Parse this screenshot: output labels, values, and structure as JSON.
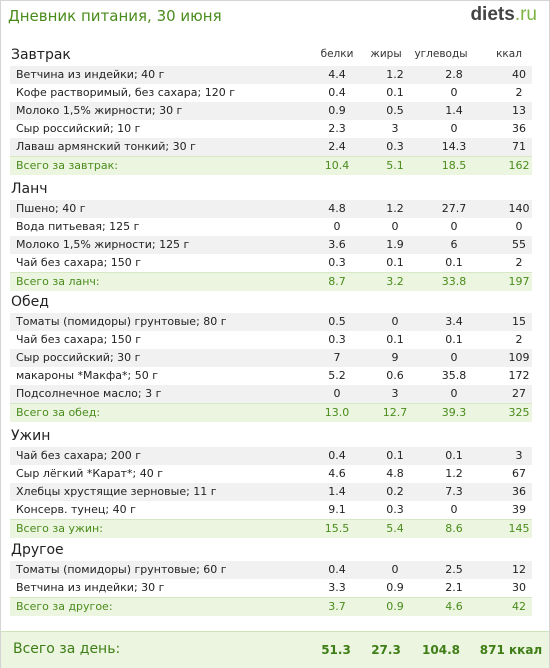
{
  "header": {
    "title": "Дневник питания, 30 июня",
    "logo_main": "diets",
    "logo_tld": ".ru"
  },
  "columns": {
    "protein": "белки",
    "fat": "жиры",
    "carbs": "углеводы",
    "kcal": "ккал"
  },
  "meals": [
    {
      "title": "Завтрак",
      "items": [
        {
          "name": "Ветчина из индейки; 40 г",
          "p": "4.4",
          "f": "1.2",
          "c": "2.8",
          "k": "40"
        },
        {
          "name": "Кофе растворимый, без сахара; 120 г",
          "p": "0.4",
          "f": "0.1",
          "c": "0",
          "k": "2"
        },
        {
          "name": "Молоко 1,5% жирности; 30 г",
          "p": "0.9",
          "f": "0.5",
          "c": "1.4",
          "k": "13"
        },
        {
          "name": "Сыр российский; 10 г",
          "p": "2.3",
          "f": "3",
          "c": "0",
          "k": "36"
        },
        {
          "name": "Лаваш армянский тонкий; 30 г",
          "p": "2.4",
          "f": "0.3",
          "c": "14.3",
          "k": "71"
        }
      ],
      "total": {
        "label": "Всего за завтрак:",
        "p": "10.4",
        "f": "5.1",
        "c": "18.5",
        "k": "162"
      }
    },
    {
      "title": "Ланч",
      "items": [
        {
          "name": "Пшено; 40 г",
          "p": "4.8",
          "f": "1.2",
          "c": "27.7",
          "k": "140"
        },
        {
          "name": "Вода питьевая; 125 г",
          "p": "0",
          "f": "0",
          "c": "0",
          "k": "0"
        },
        {
          "name": "Молоко 1,5% жирности; 125 г",
          "p": "3.6",
          "f": "1.9",
          "c": "6",
          "k": "55"
        },
        {
          "name": "Чай без сахара; 150 г",
          "p": "0.3",
          "f": "0.1",
          "c": "0.1",
          "k": "2"
        }
      ],
      "total": {
        "label": "Всего за ланч:",
        "p": "8.7",
        "f": "3.2",
        "c": "33.8",
        "k": "197"
      }
    },
    {
      "title": "Обед",
      "items": [
        {
          "name": "Томаты (помидоры) грунтовые; 80 г",
          "p": "0.5",
          "f": "0",
          "c": "3.4",
          "k": "15"
        },
        {
          "name": "Чай без сахара; 150 г",
          "p": "0.3",
          "f": "0.1",
          "c": "0.1",
          "k": "2"
        },
        {
          "name": "Сыр российский; 30 г",
          "p": "7",
          "f": "9",
          "c": "0",
          "k": "109"
        },
        {
          "name": "макароны *Макфа*; 50 г",
          "p": "5.2",
          "f": "0.6",
          "c": "35.8",
          "k": "172"
        },
        {
          "name": "Подсолнечное масло; 3 г",
          "p": "0",
          "f": "3",
          "c": "0",
          "k": "27"
        }
      ],
      "total": {
        "label": "Всего за обед:",
        "p": "13.0",
        "f": "12.7",
        "c": "39.3",
        "k": "325"
      }
    },
    {
      "title": "Ужин",
      "items": [
        {
          "name": "Чай без сахара; 200 г",
          "p": "0.4",
          "f": "0.1",
          "c": "0.1",
          "k": "3"
        },
        {
          "name": "Сыр лёгкий *Карат*; 40 г",
          "p": "4.6",
          "f": "4.8",
          "c": "1.2",
          "k": "67"
        },
        {
          "name": "Хлебцы хрустящие зерновые; 11 г",
          "p": "1.4",
          "f": "0.2",
          "c": "7.3",
          "k": "36"
        },
        {
          "name": "Консерв. тунец; 40 г",
          "p": "9.1",
          "f": "0.3",
          "c": "0",
          "k": "39"
        }
      ],
      "total": {
        "label": "Всего за ужин:",
        "p": "15.5",
        "f": "5.4",
        "c": "8.6",
        "k": "145"
      }
    },
    {
      "title": "Другое",
      "items": [
        {
          "name": "Томаты (помидоры) грунтовые; 60 г",
          "p": "0.4",
          "f": "0",
          "c": "2.5",
          "k": "12"
        },
        {
          "name": "Ветчина из индейки; 30 г",
          "p": "3.3",
          "f": "0.9",
          "c": "2.1",
          "k": "30"
        }
      ],
      "total": {
        "label": "Всего за другое:",
        "p": "3.7",
        "f": "0.9",
        "c": "4.6",
        "k": "42"
      }
    }
  ],
  "day_total": {
    "label": "Всего за день:",
    "p": "51.3",
    "f": "27.3",
    "c": "104.8",
    "k": "871 ккал"
  }
}
